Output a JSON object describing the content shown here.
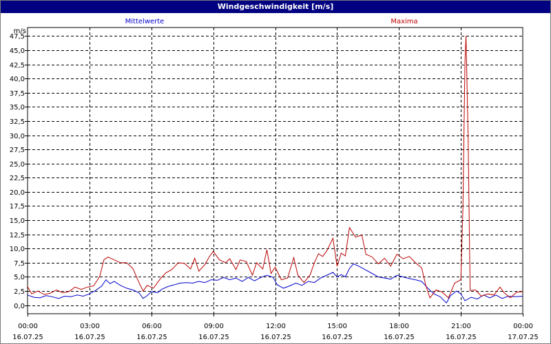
{
  "window": {
    "title": "Windgeschwindigkeit [m/s]"
  },
  "chart_data": {
    "type": "line",
    "title": "Windgeschwindigkeit [m/s]",
    "ylabel": "m/s",
    "ylim": [
      -1.5,
      49.0
    ],
    "xlim": [
      0,
      24
    ],
    "grid": true,
    "legend_placement": "top",
    "y_ticks": [
      "0,0",
      "2,5",
      "5,0",
      "7,5",
      "10,0",
      "12,5",
      "15,0",
      "17,5",
      "20,0",
      "22,5",
      "25,0",
      "27,5",
      "30,0",
      "32,5",
      "35,0",
      "37,5",
      "40,0",
      "42,5",
      "45,0",
      "47,5"
    ],
    "y_tick_values": [
      0,
      2.5,
      5,
      7.5,
      10,
      12.5,
      15,
      17.5,
      20,
      22.5,
      25,
      27.5,
      30,
      32.5,
      35,
      37.5,
      40,
      42.5,
      45,
      47.5
    ],
    "x_ticks": [
      {
        "time": "00:00",
        "date": "16.07.25",
        "hour": 0
      },
      {
        "time": "03:00",
        "date": "16.07.25",
        "hour": 3
      },
      {
        "time": "06:00",
        "date": "16.07.25",
        "hour": 6
      },
      {
        "time": "09:00",
        "date": "16.07.25",
        "hour": 9
      },
      {
        "time": "12:00",
        "date": "16.07.25",
        "hour": 12
      },
      {
        "time": "15:00",
        "date": "16.07.25",
        "hour": 15
      },
      {
        "time": "18:00",
        "date": "16.07.25",
        "hour": 18
      },
      {
        "time": "21:00",
        "date": "16.07.25",
        "hour": 21
      },
      {
        "time": "00:00",
        "date": "17.07.25",
        "hour": 24
      }
    ],
    "series": [
      {
        "name": "Mittelwerte",
        "color": "#0000cc",
        "points": [
          [
            0,
            1.8
          ],
          [
            0.3,
            1.4
          ],
          [
            0.6,
            1.3
          ],
          [
            0.9,
            1.7
          ],
          [
            1.2,
            1.5
          ],
          [
            1.5,
            1.2
          ],
          [
            1.8,
            1.6
          ],
          [
            2.1,
            1.5
          ],
          [
            2.4,
            1.8
          ],
          [
            2.7,
            1.6
          ],
          [
            3.0,
            2.0
          ],
          [
            3.3,
            2.6
          ],
          [
            3.6,
            3.4
          ],
          [
            3.8,
            4.5
          ],
          [
            4.0,
            3.8
          ],
          [
            4.2,
            4.2
          ],
          [
            4.5,
            3.5
          ],
          [
            4.8,
            3.0
          ],
          [
            5.1,
            2.7
          ],
          [
            5.4,
            2.2
          ],
          [
            5.6,
            1.2
          ],
          [
            5.8,
            1.7
          ],
          [
            6.0,
            2.4
          ],
          [
            6.3,
            2.2
          ],
          [
            6.5,
            2.8
          ],
          [
            6.8,
            3.3
          ],
          [
            7.1,
            3.6
          ],
          [
            7.4,
            3.9
          ],
          [
            7.7,
            4.0
          ],
          [
            8.0,
            3.9
          ],
          [
            8.3,
            4.2
          ],
          [
            8.6,
            4.0
          ],
          [
            8.9,
            4.5
          ],
          [
            9.2,
            4.4
          ],
          [
            9.5,
            4.9
          ],
          [
            9.8,
            4.5
          ],
          [
            10.1,
            4.8
          ],
          [
            10.4,
            4.2
          ],
          [
            10.7,
            4.9
          ],
          [
            11.0,
            4.3
          ],
          [
            11.3,
            4.9
          ],
          [
            11.6,
            5.3
          ],
          [
            11.9,
            4.9
          ],
          [
            12.1,
            3.6
          ],
          [
            12.4,
            3.0
          ],
          [
            12.7,
            3.4
          ],
          [
            13.0,
            3.9
          ],
          [
            13.3,
            3.5
          ],
          [
            13.6,
            4.2
          ],
          [
            13.9,
            4.0
          ],
          [
            14.2,
            4.8
          ],
          [
            14.5,
            5.3
          ],
          [
            14.8,
            5.8
          ],
          [
            15.0,
            5.0
          ],
          [
            15.2,
            5.4
          ],
          [
            15.4,
            5.0
          ],
          [
            15.6,
            6.5
          ],
          [
            15.8,
            7.3
          ],
          [
            16.1,
            6.8
          ],
          [
            16.4,
            6.2
          ],
          [
            16.7,
            5.6
          ],
          [
            17.0,
            5.0
          ],
          [
            17.3,
            4.8
          ],
          [
            17.6,
            4.6
          ],
          [
            17.9,
            5.3
          ],
          [
            18.2,
            5.0
          ],
          [
            18.5,
            4.7
          ],
          [
            18.8,
            4.5
          ],
          [
            19.1,
            4.2
          ],
          [
            19.4,
            3.0
          ],
          [
            19.7,
            2.0
          ],
          [
            20.0,
            1.5
          ],
          [
            20.3,
            0.4
          ],
          [
            20.5,
            1.7
          ],
          [
            20.8,
            2.5
          ],
          [
            21.0,
            2.0
          ],
          [
            21.2,
            0.8
          ],
          [
            21.5,
            1.4
          ],
          [
            21.8,
            1.1
          ],
          [
            22.1,
            1.8
          ],
          [
            22.4,
            1.3
          ],
          [
            22.7,
            1.8
          ],
          [
            23.0,
            1.2
          ],
          [
            23.3,
            1.6
          ],
          [
            23.6,
            1.5
          ],
          [
            24.0,
            1.6
          ]
        ]
      },
      {
        "name": "Maxima",
        "color": "#bb0000",
        "points": [
          [
            0,
            3.3
          ],
          [
            0.2,
            2.0
          ],
          [
            0.5,
            2.5
          ],
          [
            0.8,
            1.9
          ],
          [
            1.1,
            2.1
          ],
          [
            1.4,
            2.7
          ],
          [
            1.7,
            2.2
          ],
          [
            2.0,
            2.4
          ],
          [
            2.3,
            3.2
          ],
          [
            2.6,
            2.8
          ],
          [
            2.9,
            3.2
          ],
          [
            3.2,
            3.4
          ],
          [
            3.5,
            5.1
          ],
          [
            3.7,
            8.0
          ],
          [
            3.9,
            8.5
          ],
          [
            4.2,
            8.0
          ],
          [
            4.5,
            7.5
          ],
          [
            4.8,
            7.5
          ],
          [
            5.1,
            6.5
          ],
          [
            5.4,
            4.0
          ],
          [
            5.6,
            2.5
          ],
          [
            5.8,
            3.5
          ],
          [
            6.1,
            3.0
          ],
          [
            6.4,
            4.5
          ],
          [
            6.7,
            5.7
          ],
          [
            7.0,
            6.3
          ],
          [
            7.3,
            7.5
          ],
          [
            7.6,
            7.4
          ],
          [
            7.9,
            6.4
          ],
          [
            8.1,
            8.3
          ],
          [
            8.3,
            6.0
          ],
          [
            8.6,
            7.2
          ],
          [
            8.8,
            8.5
          ],
          [
            9.0,
            9.5
          ],
          [
            9.3,
            8.0
          ],
          [
            9.6,
            7.5
          ],
          [
            9.8,
            8.2
          ],
          [
            10.1,
            6.3
          ],
          [
            10.3,
            8.0
          ],
          [
            10.6,
            7.7
          ],
          [
            10.9,
            5.3
          ],
          [
            11.1,
            7.5
          ],
          [
            11.4,
            6.4
          ],
          [
            11.6,
            9.8
          ],
          [
            11.8,
            5.6
          ],
          [
            12.0,
            6.7
          ],
          [
            12.3,
            4.5
          ],
          [
            12.6,
            4.8
          ],
          [
            12.9,
            8.4
          ],
          [
            13.1,
            5.3
          ],
          [
            13.4,
            4.0
          ],
          [
            13.7,
            5.4
          ],
          [
            13.9,
            7.5
          ],
          [
            14.1,
            9.1
          ],
          [
            14.3,
            8.6
          ],
          [
            14.5,
            9.6
          ],
          [
            14.8,
            11.8
          ],
          [
            15.0,
            6.9
          ],
          [
            15.2,
            9.2
          ],
          [
            15.4,
            8.7
          ],
          [
            15.6,
            13.7
          ],
          [
            15.9,
            12.0
          ],
          [
            16.2,
            12.4
          ],
          [
            16.4,
            9.0
          ],
          [
            16.7,
            8.5
          ],
          [
            17.0,
            7.3
          ],
          [
            17.3,
            8.3
          ],
          [
            17.6,
            6.9
          ],
          [
            17.9,
            9.0
          ],
          [
            18.2,
            8.2
          ],
          [
            18.5,
            8.6
          ],
          [
            18.8,
            7.5
          ],
          [
            19.1,
            6.6
          ],
          [
            19.3,
            3.5
          ],
          [
            19.5,
            1.3
          ],
          [
            19.8,
            2.7
          ],
          [
            20.1,
            2.3
          ],
          [
            20.4,
            1.3
          ],
          [
            20.7,
            3.9
          ],
          [
            21.0,
            4.5
          ],
          [
            21.1,
            17.0
          ],
          [
            21.2,
            43.0
          ],
          [
            21.25,
            47.5
          ],
          [
            21.35,
            30.0
          ],
          [
            21.45,
            2.6
          ],
          [
            21.7,
            2.7
          ],
          [
            22.0,
            1.6
          ],
          [
            22.3,
            2.0
          ],
          [
            22.6,
            1.8
          ],
          [
            22.9,
            3.2
          ],
          [
            23.1,
            2.2
          ],
          [
            23.4,
            1.3
          ],
          [
            23.7,
            2.3
          ],
          [
            24.0,
            2.4
          ]
        ]
      }
    ]
  }
}
